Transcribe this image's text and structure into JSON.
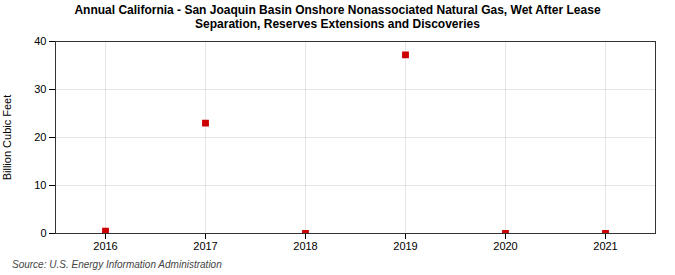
{
  "chart_data": {
    "type": "scatter",
    "title": "Annual California - San Joaquin Basin Onshore Nonassociated Natural Gas, Wet After Lease\nSeparation, Reserves Extensions and Discoveries",
    "ylabel": "Billion Cubic Feet",
    "annotations": [
      "Source: U.S. Energy Information Administration"
    ],
    "x": [
      2016,
      2017,
      2018,
      2019,
      2020,
      2021
    ],
    "values": [
      0.5,
      23.0,
      0.0,
      37.2,
      0.0,
      0.0
    ],
    "xlim": [
      2015.5,
      2021.5
    ],
    "xticks": [
      2016,
      2017,
      2018,
      2019,
      2020,
      2021
    ],
    "ylim": [
      0,
      40
    ],
    "yticks": [
      0,
      10,
      20,
      30,
      40
    ],
    "color": "#cc0000",
    "marker": "square",
    "grid": true
  }
}
